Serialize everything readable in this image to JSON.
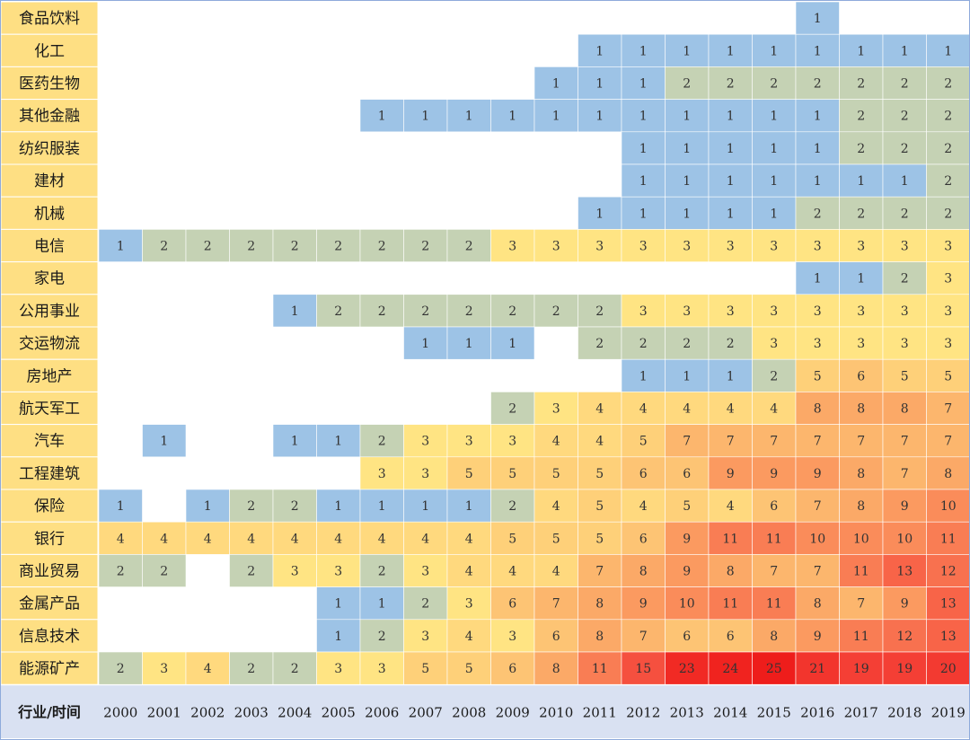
{
  "chart_data": {
    "type": "heatmap",
    "corner_label": "行业/时间",
    "years": [
      "2000",
      "2001",
      "2002",
      "2003",
      "2004",
      "2005",
      "2006",
      "2007",
      "2008",
      "2009",
      "2010",
      "2011",
      "2012",
      "2013",
      "2014",
      "2015",
      "2016",
      "2017",
      "2018",
      "2019"
    ],
    "rows": [
      {
        "label": "食品饮料",
        "values": [
          null,
          null,
          null,
          null,
          null,
          null,
          null,
          null,
          null,
          null,
          null,
          null,
          null,
          null,
          null,
          null,
          1,
          null,
          null,
          null
        ]
      },
      {
        "label": "化工",
        "values": [
          null,
          null,
          null,
          null,
          null,
          null,
          null,
          null,
          null,
          null,
          null,
          1,
          1,
          1,
          1,
          1,
          1,
          1,
          1,
          1
        ]
      },
      {
        "label": "医药生物",
        "values": [
          null,
          null,
          null,
          null,
          null,
          null,
          null,
          null,
          null,
          null,
          1,
          1,
          1,
          2,
          2,
          2,
          2,
          2,
          2,
          2
        ]
      },
      {
        "label": "其他金融",
        "values": [
          null,
          null,
          null,
          null,
          null,
          null,
          1,
          1,
          1,
          1,
          1,
          1,
          1,
          1,
          1,
          1,
          1,
          2,
          2,
          2
        ]
      },
      {
        "label": "纺织服装",
        "values": [
          null,
          null,
          null,
          null,
          null,
          null,
          null,
          null,
          null,
          null,
          null,
          null,
          1,
          1,
          1,
          1,
          1,
          2,
          2,
          2
        ]
      },
      {
        "label": "建材",
        "values": [
          null,
          null,
          null,
          null,
          null,
          null,
          null,
          null,
          null,
          null,
          null,
          null,
          1,
          1,
          1,
          1,
          1,
          1,
          1,
          2
        ]
      },
      {
        "label": "机械",
        "values": [
          null,
          null,
          null,
          null,
          null,
          null,
          null,
          null,
          null,
          null,
          null,
          1,
          1,
          1,
          1,
          1,
          2,
          2,
          2,
          2
        ]
      },
      {
        "label": "电信",
        "values": [
          1,
          2,
          2,
          2,
          2,
          2,
          2,
          2,
          2,
          3,
          3,
          3,
          3,
          3,
          3,
          3,
          3,
          3,
          3,
          3
        ]
      },
      {
        "label": "家电",
        "values": [
          null,
          null,
          null,
          null,
          null,
          null,
          null,
          null,
          null,
          null,
          null,
          null,
          null,
          null,
          null,
          null,
          1,
          1,
          2,
          3
        ]
      },
      {
        "label": "公用事业",
        "values": [
          null,
          null,
          null,
          null,
          1,
          2,
          2,
          2,
          2,
          2,
          2,
          2,
          3,
          3,
          3,
          3,
          3,
          3,
          3,
          3
        ]
      },
      {
        "label": "交运物流",
        "values": [
          null,
          null,
          null,
          null,
          null,
          null,
          null,
          1,
          1,
          1,
          null,
          2,
          2,
          2,
          2,
          3,
          3,
          3,
          3,
          3
        ]
      },
      {
        "label": "房地产",
        "values": [
          null,
          null,
          null,
          null,
          null,
          null,
          null,
          null,
          null,
          null,
          null,
          null,
          1,
          1,
          1,
          2,
          5,
          6,
          5,
          5
        ]
      },
      {
        "label": "航天军工",
        "values": [
          null,
          null,
          null,
          null,
          null,
          null,
          null,
          null,
          null,
          2,
          3,
          4,
          4,
          4,
          4,
          4,
          8,
          8,
          8,
          7
        ]
      },
      {
        "label": "汽车",
        "values": [
          null,
          1,
          null,
          null,
          1,
          1,
          2,
          3,
          3,
          3,
          4,
          4,
          5,
          7,
          7,
          7,
          7,
          7,
          7,
          7
        ]
      },
      {
        "label": "工程建筑",
        "values": [
          null,
          null,
          null,
          null,
          null,
          null,
          3,
          3,
          5,
          5,
          5,
          5,
          6,
          6,
          9,
          9,
          9,
          8,
          7,
          8
        ]
      },
      {
        "label": "保险",
        "values": [
          1,
          null,
          1,
          2,
          2,
          1,
          1,
          1,
          1,
          2,
          4,
          5,
          4,
          5,
          4,
          6,
          7,
          8,
          9,
          10
        ]
      },
      {
        "label": "银行",
        "values": [
          4,
          4,
          4,
          4,
          4,
          4,
          4,
          4,
          4,
          5,
          5,
          5,
          6,
          9,
          11,
          11,
          10,
          10,
          10,
          11
        ]
      },
      {
        "label": "商业贸易",
        "values": [
          2,
          2,
          null,
          2,
          3,
          3,
          2,
          3,
          4,
          4,
          4,
          7,
          8,
          9,
          8,
          7,
          7,
          11,
          13,
          12
        ]
      },
      {
        "label": "金属产品",
        "values": [
          null,
          null,
          null,
          null,
          null,
          1,
          1,
          2,
          3,
          6,
          7,
          8,
          9,
          10,
          11,
          11,
          8,
          7,
          9,
          13
        ]
      },
      {
        "label": "信息技术",
        "values": [
          null,
          null,
          null,
          null,
          null,
          1,
          2,
          3,
          4,
          3,
          6,
          8,
          7,
          6,
          6,
          8,
          9,
          11,
          12,
          13
        ]
      },
      {
        "label": "能源矿产",
        "values": [
          2,
          3,
          4,
          2,
          2,
          3,
          3,
          5,
          5,
          6,
          8,
          11,
          15,
          23,
          24,
          25,
          21,
          19,
          19,
          20
        ]
      }
    ],
    "colors": {
      "1": "#9dc3e6",
      "2": "#c5d2b4",
      "3": "#ffe483",
      "4": "#ffd97e",
      "5": "#fed079",
      "6": "#fdc474",
      "7": "#fcb66d",
      "8": "#fba967",
      "9": "#fb9a60",
      "10": "#fa8c5a",
      "11": "#f97d54",
      "12": "#f8714f",
      "13": "#f86448",
      "15": "#f5503f",
      "19": "#f43f35",
      "20": "#f33a31",
      "21": "#f2352d",
      "23": "#f12a24",
      "24": "#f0231f",
      "25": "#ee1d1b",
      "empty": "#ffffff",
      "label_bg": "#fedf83",
      "footer_bg": "#d9e1f2",
      "grid": "#ffffff",
      "border": "#8eaadb"
    }
  }
}
